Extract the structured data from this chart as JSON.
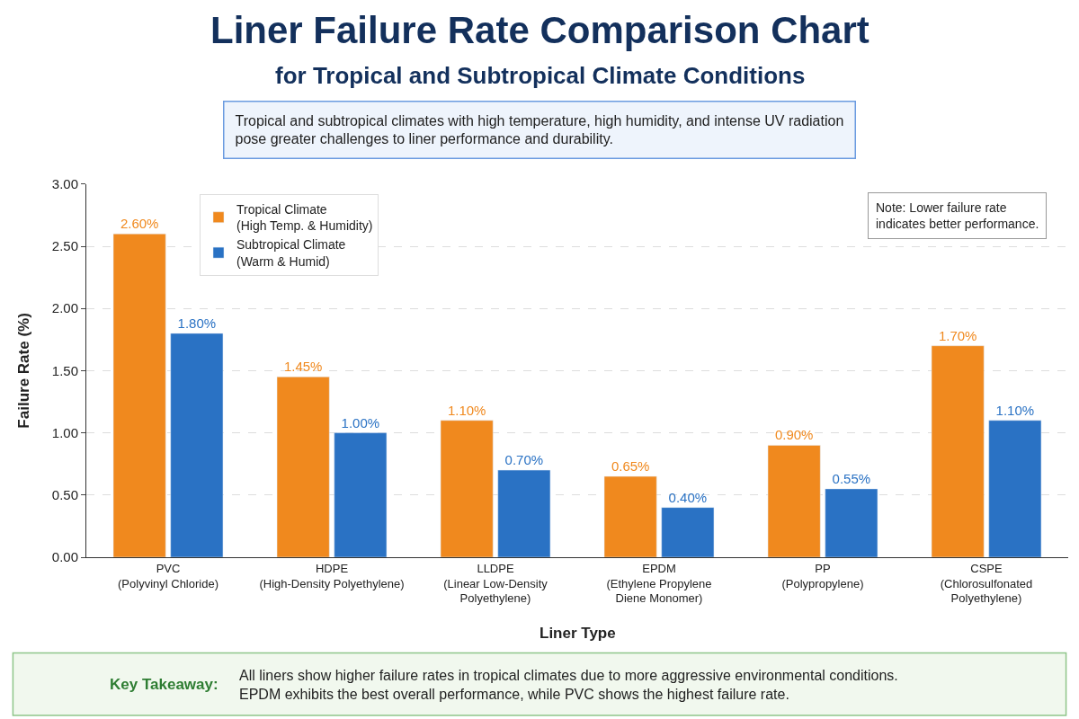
{
  "chart_data": {
    "type": "bar",
    "title": "Liner Failure Rate Comparison Chart",
    "subtitle": "for Tropical and Subtropical Climate Conditions",
    "xlabel": "Liner Type",
    "ylabel": "Failure Rate (%)",
    "categories": [
      "PVC\n(Polyvinyl Chloride)",
      "HDPE\n(High-Density Polyethylene)",
      "LLDPE\n(Linear Low-Density\nPolyethylene)",
      "EPDM\n(Ethylene Propylene\nDiene Monomer)",
      "PP\n(Polypropylene)",
      "CSPE\n(Chlorosulfonated\nPolyethylene)"
    ],
    "series": [
      {
        "name": "Tropical Climate\n(High Temp. & Humidity)",
        "color": "#f0891e",
        "values": [
          2.6,
          1.45,
          1.1,
          0.65,
          0.9,
          1.7
        ],
        "value_labels": [
          "2.60%",
          "1.45%",
          "1.10%",
          "0.65%",
          "0.90%",
          "1.70%"
        ]
      },
      {
        "name": "Subtropical Climate\n(Warm & Humid)",
        "color": "#2a72c4",
        "values": [
          1.8,
          1.0,
          0.7,
          0.4,
          0.55,
          1.1
        ],
        "value_labels": [
          "1.80%",
          "1.00%",
          "0.70%",
          "0.40%",
          "0.55%",
          "1.10%"
        ]
      }
    ],
    "ylim": [
      0,
      3
    ],
    "yticks": [
      {
        "value": 0,
        "label": "0.00"
      },
      {
        "value": 0.5,
        "label": "0.50"
      },
      {
        "value": 1,
        "label": "1.00"
      },
      {
        "value": 1.5,
        "label": "1.50"
      },
      {
        "value": 2,
        "label": "2.00"
      },
      {
        "value": 2.5,
        "label": "2.50"
      },
      {
        "value": 3,
        "label": "3.00"
      }
    ],
    "grid": "y",
    "legend": "top left",
    "annotations": [
      "Tropical and subtropical climates with high temperature, high humidity, and intense UV radiation\npose greater challenges to liner performance and durability.",
      "Note: Lower failure rate\nindicates better performance.",
      "Key Takeaway:",
      "All liners show higher failure rates in tropical climates due to more aggressive environmental conditions.\nEPDM exhibits the best overall performance, while PVC shows the highest failure rate."
    ]
  }
}
